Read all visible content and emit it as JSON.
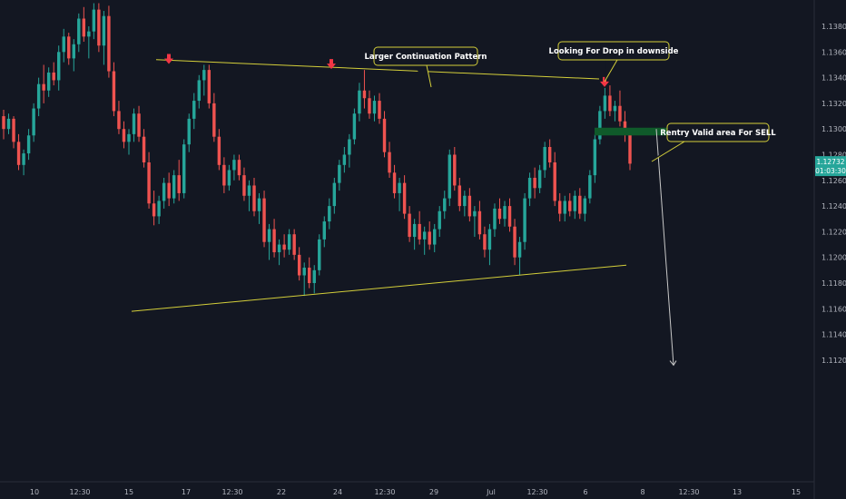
{
  "chart_data": {
    "type": "candlestick",
    "instrument_hint": "EUR/USD",
    "colors": {
      "background": "#131722",
      "up": "#26a69a",
      "down": "#ef5350",
      "trendline": "#d4cf3a",
      "arrow": "#f23645",
      "zone": "#0f5a2a",
      "annotation_border": "#d4cf3a",
      "axis_text": "#b2b5be",
      "price_badge": "#26a69a",
      "projection": "#c8c8c8"
    },
    "y_axis": {
      "ticks": [
        "1.13800",
        "1.13600",
        "1.13400",
        "1.13200",
        "1.13000",
        "1.12800",
        "1.12600",
        "1.12400",
        "1.12200",
        "1.12000",
        "1.11800",
        "1.11600",
        "1.11400",
        "1.11200"
      ],
      "range": [
        1.1113,
        1.1398
      ]
    },
    "x_axis": {
      "ticks": [
        "10",
        "12:30",
        "15",
        "17",
        "12:30",
        "22",
        "24",
        "12:30",
        "29",
        "Jul",
        "12:30",
        "6",
        "8",
        "12:30",
        "13",
        "15"
      ]
    },
    "last_price": {
      "value": "1.12732",
      "countdown": "01:03:30"
    },
    "annotations": [
      {
        "text": "Larger Continuation Pattern"
      },
      {
        "text": "Looking For Drop in downside"
      },
      {
        "text": "Rentry Valid area For SELL"
      }
    ],
    "resistance_line": {
      "from": 1.1354,
      "to": 1.1339
    },
    "support_line": {
      "from": 1.1158,
      "to": 1.1194
    },
    "sell_zone": [
      1.1295,
      1.1301
    ],
    "markers": [
      {
        "type": "arrow-down",
        "price": 1.135
      },
      {
        "type": "arrow-down",
        "price": 1.1346
      },
      {
        "type": "arrow-down",
        "price": 1.1332
      }
    ],
    "projection_target": 1.1116,
    "candles": [
      [
        1.131,
        1.1315,
        1.1292,
        1.13
      ],
      [
        1.13,
        1.1312,
        1.1296,
        1.1308
      ],
      [
        1.1308,
        1.131,
        1.1285,
        1.129
      ],
      [
        1.129,
        1.1296,
        1.1268,
        1.1272
      ],
      [
        1.1272,
        1.1284,
        1.1264,
        1.1281
      ],
      [
        1.1281,
        1.13,
        1.1276,
        1.1295
      ],
      [
        1.1295,
        1.132,
        1.129,
        1.1316
      ],
      [
        1.1316,
        1.134,
        1.131,
        1.1335
      ],
      [
        1.1335,
        1.135,
        1.132,
        1.133
      ],
      [
        1.133,
        1.1348,
        1.1325,
        1.1344
      ],
      [
        1.1344,
        1.1352,
        1.1334,
        1.1338
      ],
      [
        1.1338,
        1.1365,
        1.133,
        1.136
      ],
      [
        1.136,
        1.1378,
        1.1352,
        1.1372
      ],
      [
        1.1372,
        1.1375,
        1.135,
        1.1355
      ],
      [
        1.1355,
        1.137,
        1.1345,
        1.1366
      ],
      [
        1.1366,
        1.139,
        1.136,
        1.1386
      ],
      [
        1.1386,
        1.1395,
        1.1368,
        1.1372
      ],
      [
        1.1372,
        1.138,
        1.1355,
        1.1376
      ],
      [
        1.1376,
        1.1398,
        1.137,
        1.1393
      ],
      [
        1.1393,
        1.1398,
        1.136,
        1.1365
      ],
      [
        1.1365,
        1.1392,
        1.135,
        1.1388
      ],
      [
        1.1388,
        1.1396,
        1.134,
        1.1345
      ],
      [
        1.1345,
        1.1352,
        1.131,
        1.1314
      ],
      [
        1.1314,
        1.1322,
        1.1296,
        1.13
      ],
      [
        1.13,
        1.1306,
        1.1285,
        1.129
      ],
      [
        1.129,
        1.13,
        1.128,
        1.1296
      ],
      [
        1.1296,
        1.1316,
        1.129,
        1.1312
      ],
      [
        1.1312,
        1.1318,
        1.129,
        1.1294
      ],
      [
        1.1294,
        1.13,
        1.127,
        1.1274
      ],
      [
        1.1274,
        1.1282,
        1.1238,
        1.1242
      ],
      [
        1.1242,
        1.1252,
        1.1225,
        1.1232
      ],
      [
        1.1232,
        1.1248,
        1.1226,
        1.1244
      ],
      [
        1.1244,
        1.1262,
        1.1238,
        1.1258
      ],
      [
        1.1258,
        1.1266,
        1.124,
        1.1246
      ],
      [
        1.1246,
        1.1268,
        1.1242,
        1.1264
      ],
      [
        1.1264,
        1.1276,
        1.1244,
        1.125
      ],
      [
        1.125,
        1.1292,
        1.1246,
        1.1288
      ],
      [
        1.1288,
        1.1312,
        1.1282,
        1.1308
      ],
      [
        1.1308,
        1.1328,
        1.13,
        1.1322
      ],
      [
        1.1322,
        1.1342,
        1.1316,
        1.1338
      ],
      [
        1.1338,
        1.135,
        1.1326,
        1.1346
      ],
      [
        1.1346,
        1.135,
        1.1316,
        1.132
      ],
      [
        1.132,
        1.1328,
        1.129,
        1.1294
      ],
      [
        1.1294,
        1.13,
        1.1268,
        1.1272
      ],
      [
        1.1272,
        1.1278,
        1.125,
        1.1256
      ],
      [
        1.1256,
        1.1272,
        1.1252,
        1.1268
      ],
      [
        1.1268,
        1.128,
        1.126,
        1.1276
      ],
      [
        1.1276,
        1.128,
        1.126,
        1.1264
      ],
      [
        1.1264,
        1.127,
        1.1244,
        1.1248
      ],
      [
        1.1248,
        1.126,
        1.1236,
        1.1256
      ],
      [
        1.1256,
        1.1262,
        1.1232,
        1.1236
      ],
      [
        1.1236,
        1.125,
        1.1226,
        1.1246
      ],
      [
        1.1246,
        1.1252,
        1.1208,
        1.1212
      ],
      [
        1.1212,
        1.1226,
        1.1198,
        1.1222
      ],
      [
        1.1222,
        1.123,
        1.12,
        1.1204
      ],
      [
        1.1204,
        1.1214,
        1.1194,
        1.121
      ],
      [
        1.121,
        1.1218,
        1.12,
        1.1206
      ],
      [
        1.1206,
        1.1222,
        1.1202,
        1.1218
      ],
      [
        1.1218,
        1.1222,
        1.1198,
        1.1202
      ],
      [
        1.1202,
        1.1208,
        1.1182,
        1.1186
      ],
      [
        1.1186,
        1.1196,
        1.117,
        1.1192
      ],
      [
        1.1192,
        1.12,
        1.1176,
        1.118
      ],
      [
        1.118,
        1.1194,
        1.1172,
        1.119
      ],
      [
        1.119,
        1.1218,
        1.1186,
        1.1214
      ],
      [
        1.1214,
        1.1232,
        1.1208,
        1.1228
      ],
      [
        1.1228,
        1.1246,
        1.1222,
        1.124
      ],
      [
        1.124,
        1.1262,
        1.1234,
        1.1258
      ],
      [
        1.1258,
        1.1276,
        1.1252,
        1.1272
      ],
      [
        1.1272,
        1.1286,
        1.1266,
        1.128
      ],
      [
        1.128,
        1.1296,
        1.127,
        1.1292
      ],
      [
        1.1292,
        1.1316,
        1.1288,
        1.1312
      ],
      [
        1.1312,
        1.1336,
        1.1306,
        1.133
      ],
      [
        1.133,
        1.1346,
        1.1316,
        1.1324
      ],
      [
        1.1324,
        1.133,
        1.1308,
        1.1312
      ],
      [
        1.1312,
        1.1326,
        1.1306,
        1.1322
      ],
      [
        1.1322,
        1.1328,
        1.1304,
        1.1308
      ],
      [
        1.1308,
        1.1314,
        1.1278,
        1.1282
      ],
      [
        1.1282,
        1.129,
        1.1262,
        1.1266
      ],
      [
        1.1266,
        1.1272,
        1.1246,
        1.125
      ],
      [
        1.125,
        1.1262,
        1.1236,
        1.1258
      ],
      [
        1.1258,
        1.1264,
        1.123,
        1.1234
      ],
      [
        1.1234,
        1.124,
        1.1212,
        1.1216
      ],
      [
        1.1216,
        1.123,
        1.1206,
        1.1226
      ],
      [
        1.1226,
        1.1236,
        1.121,
        1.1214
      ],
      [
        1.1214,
        1.1224,
        1.1202,
        1.122
      ],
      [
        1.122,
        1.1228,
        1.1206,
        1.121
      ],
      [
        1.121,
        1.1226,
        1.1204,
        1.1222
      ],
      [
        1.1222,
        1.124,
        1.1216,
        1.1236
      ],
      [
        1.1236,
        1.1252,
        1.123,
        1.1246
      ],
      [
        1.1246,
        1.1284,
        1.124,
        1.128
      ],
      [
        1.128,
        1.1286,
        1.1252,
        1.1256
      ],
      [
        1.1256,
        1.1262,
        1.1236,
        1.124
      ],
      [
        1.124,
        1.1252,
        1.1232,
        1.1248
      ],
      [
        1.1248,
        1.1254,
        1.1228,
        1.1232
      ],
      [
        1.1232,
        1.124,
        1.1216,
        1.1236
      ],
      [
        1.1236,
        1.1244,
        1.1214,
        1.1218
      ],
      [
        1.1218,
        1.1224,
        1.12,
        1.1206
      ],
      [
        1.1206,
        1.1226,
        1.1194,
        1.1222
      ],
      [
        1.1222,
        1.1242,
        1.1216,
        1.1238
      ],
      [
        1.1238,
        1.1246,
        1.1226,
        1.123
      ],
      [
        1.123,
        1.1244,
        1.1224,
        1.124
      ],
      [
        1.124,
        1.1246,
        1.122,
        1.1224
      ],
      [
        1.1224,
        1.123,
        1.1194,
        1.12
      ],
      [
        1.12,
        1.1216,
        1.1186,
        1.1212
      ],
      [
        1.1212,
        1.125,
        1.1206,
        1.1246
      ],
      [
        1.1246,
        1.1266,
        1.124,
        1.1262
      ],
      [
        1.1262,
        1.127,
        1.1246,
        1.1254
      ],
      [
        1.1254,
        1.1272,
        1.125,
        1.1268
      ],
      [
        1.1268,
        1.129,
        1.1262,
        1.1286
      ],
      [
        1.1286,
        1.1292,
        1.127,
        1.1274
      ],
      [
        1.1274,
        1.1282,
        1.124,
        1.1244
      ],
      [
        1.1244,
        1.125,
        1.1228,
        1.1234
      ],
      [
        1.1234,
        1.1248,
        1.1228,
        1.1244
      ],
      [
        1.1244,
        1.125,
        1.1232,
        1.1236
      ],
      [
        1.1236,
        1.1252,
        1.123,
        1.1248
      ],
      [
        1.1248,
        1.1254,
        1.123,
        1.1234
      ],
      [
        1.1234,
        1.1248,
        1.1228,
        1.1246
      ],
      [
        1.1246,
        1.1268,
        1.1242,
        1.1264
      ],
      [
        1.1264,
        1.1296,
        1.1258,
        1.1292
      ],
      [
        1.1292,
        1.1318,
        1.1288,
        1.1314
      ],
      [
        1.1314,
        1.1332,
        1.1308,
        1.1326
      ],
      [
        1.1326,
        1.1334,
        1.131,
        1.1314
      ],
      [
        1.1314,
        1.1322,
        1.1306,
        1.1318
      ],
      [
        1.1318,
        1.133,
        1.1302,
        1.1306
      ],
      [
        1.1306,
        1.1314,
        1.129,
        1.1296
      ],
      [
        1.1296,
        1.13,
        1.1268,
        1.1273
      ]
    ]
  }
}
